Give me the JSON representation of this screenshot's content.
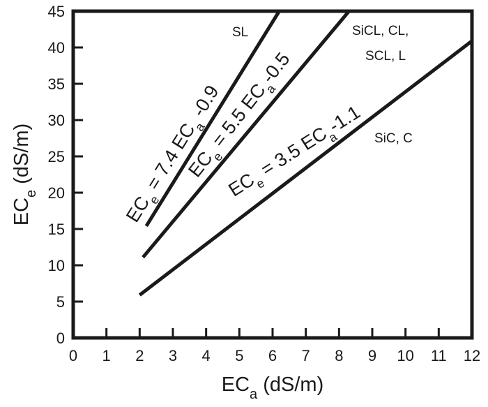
{
  "chart_data": {
    "type": "line",
    "xlabel": {
      "main": "EC",
      "sub": "a",
      "unit": " (dS/m)"
    },
    "ylabel": {
      "main": "EC",
      "sub": "e",
      "unit": " (dS/m)"
    },
    "xlim": [
      0,
      12
    ],
    "ylim": [
      0,
      45
    ],
    "xticks": [
      "0",
      "1",
      "2",
      "3",
      "4",
      "5",
      "6",
      "7",
      "8",
      "9",
      "10",
      "11",
      "12"
    ],
    "yticks": [
      "0",
      "5",
      "10",
      "15",
      "20",
      "25",
      "30",
      "35",
      "40",
      "45"
    ],
    "grid": false,
    "series": [
      {
        "name": "SL",
        "equation": {
          "lhs": "EC",
          "lhs_sub": "e",
          "mid": " = 7.4 EC",
          "mid_sub": "a",
          "rhs": " -0.9"
        },
        "slope": 7.4,
        "intercept": -0.9,
        "x": [
          2.2,
          6.2
        ],
        "y": [
          15.4,
          45
        ]
      },
      {
        "name": "SiCL, CL, SCL, L",
        "label_lines": [
          "SiCL, CL,",
          "SCL, L"
        ],
        "equation": {
          "lhs": "EC",
          "lhs_sub": "e",
          "mid": " = 5.5 EC",
          "mid_sub": "a",
          "rhs": "-0.5"
        },
        "slope": 5.5,
        "intercept": -0.5,
        "x": [
          2.1,
          8.3
        ],
        "y": [
          11.1,
          45
        ]
      },
      {
        "name": "SiC, C",
        "equation": {
          "lhs": "EC",
          "lhs_sub": "e",
          "mid": " = 3.5 EC",
          "mid_sub": "a",
          "rhs": "-1.1"
        },
        "slope": 3.5,
        "intercept": -1.1,
        "x": [
          2.0,
          12.0
        ],
        "y": [
          5.9,
          40.9
        ]
      }
    ]
  }
}
